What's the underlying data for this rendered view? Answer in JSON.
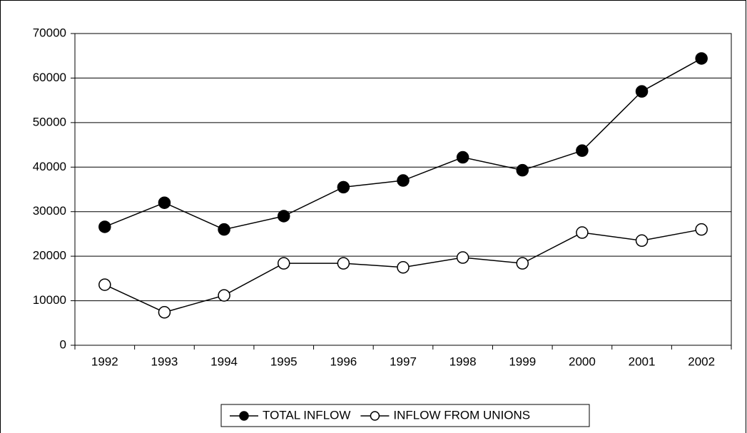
{
  "chart_data": {
    "type": "line",
    "categories": [
      "1992",
      "1993",
      "1994",
      "1995",
      "1996",
      "1997",
      "1998",
      "1999",
      "2000",
      "2001",
      "2002"
    ],
    "series": [
      {
        "name": "TOTAL INFLOW",
        "color": "#000000",
        "marker_fill": "#000000",
        "values": [
          26600,
          32000,
          26000,
          29000,
          35500,
          37000,
          42200,
          39300,
          43700,
          57000,
          64400
        ]
      },
      {
        "name": "INFLOW FROM UNIONS",
        "color": "#000000",
        "marker_fill": "#ffffff",
        "values": [
          13600,
          7400,
          11200,
          18400,
          18400,
          17500,
          19700,
          18400,
          25300,
          23500,
          26000
        ]
      }
    ],
    "ylim": [
      0,
      70000
    ],
    "yticks": [
      0,
      10000,
      20000,
      30000,
      40000,
      50000,
      60000,
      70000
    ],
    "grid": true,
    "legend": "bottom"
  }
}
